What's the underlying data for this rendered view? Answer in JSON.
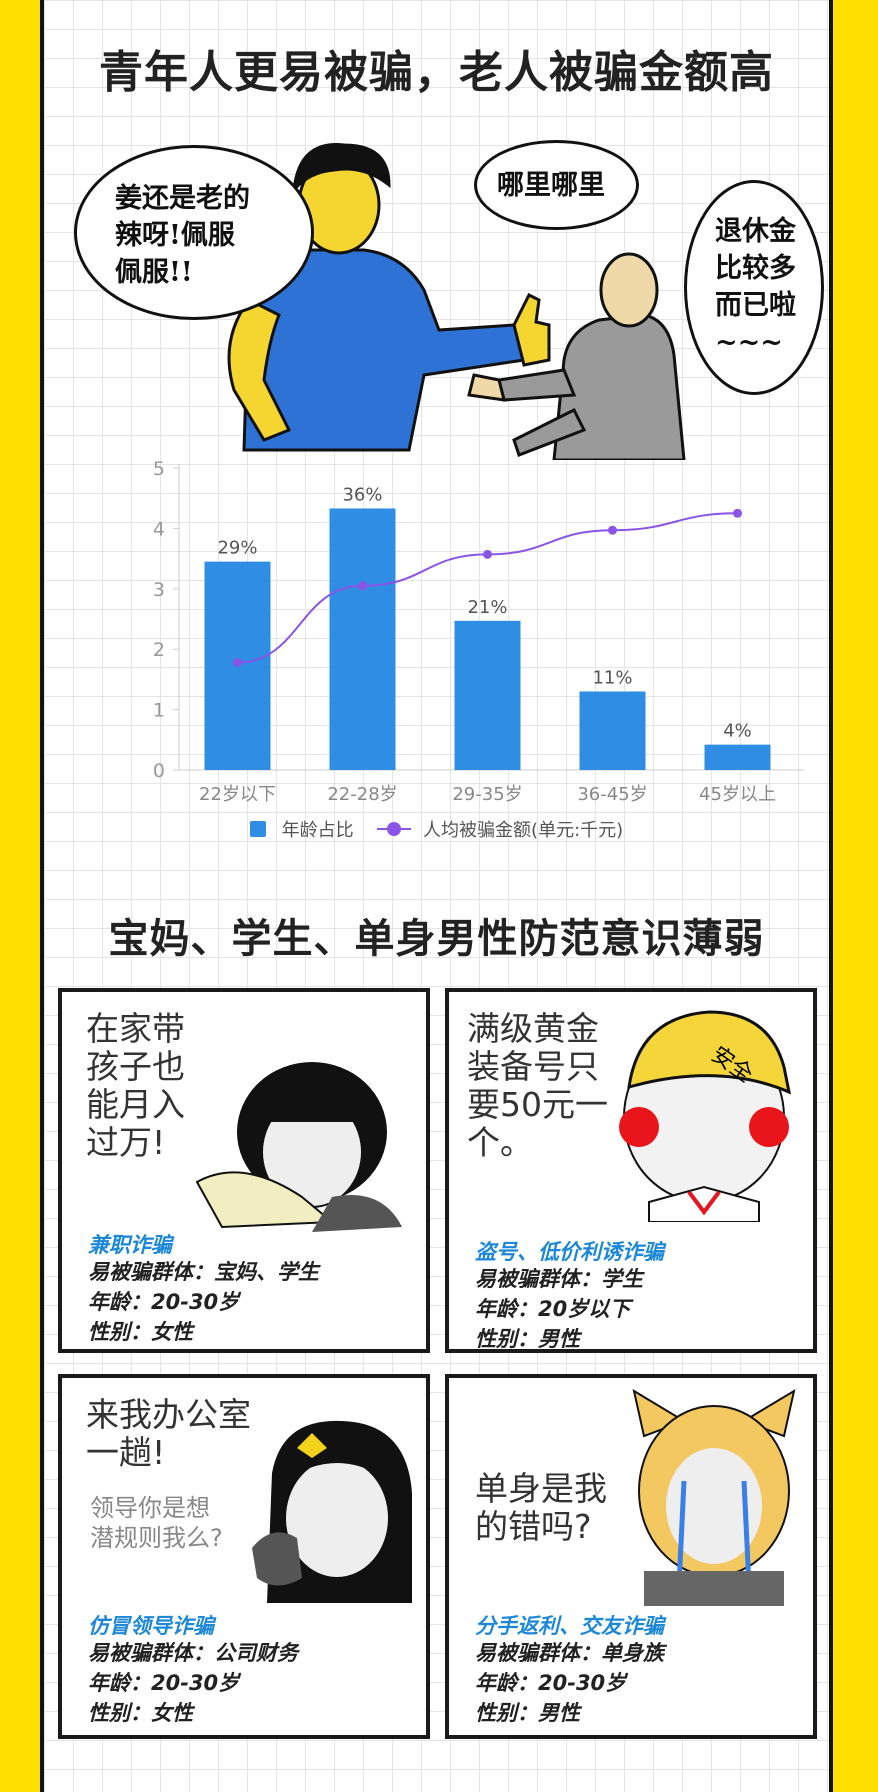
{
  "section1": {
    "title": "青年人更易被骗，老人被骗金额高"
  },
  "comic": {
    "young_speech": "姜还是老的\n辣呀!佩服\n佩服!!",
    "old_speech_1": "哪里哪里",
    "old_speech_2": "退休金\n比较多\n而已啦\n~~~"
  },
  "chart_data": {
    "type": "bar",
    "categories": [
      "22岁以下",
      "22-28岁",
      "29-35岁",
      "36-45岁",
      "45岁以上"
    ],
    "series": [
      {
        "name": "年龄占比",
        "type": "bar",
        "values": [
          3.45,
          4.33,
          2.47,
          1.3,
          0.42
        ],
        "labels": [
          "29%",
          "36%",
          "21%",
          "11%",
          "4%"
        ],
        "color": "#2f8de4"
      },
      {
        "name": "人均被骗金额(单元:千元)",
        "type": "line",
        "values": [
          1.78,
          3.05,
          3.57,
          3.97,
          4.25
        ],
        "color": "#8a55e6"
      }
    ],
    "ylim": [
      0,
      5
    ],
    "yticks": [
      0,
      1,
      2,
      3,
      4,
      5
    ],
    "grid": false,
    "legend": "bottom"
  },
  "section2": {
    "title": "宝妈、学生、单身男性防范意识薄弱"
  },
  "cards": [
    {
      "quote": "在家带\n孩子也\n能月入\n过万!",
      "scam": "兼职诈骗",
      "group": "易被骗群体：宝妈、学生",
      "age": "年龄：20-30岁",
      "gender": "性别：女性"
    },
    {
      "quote": "满级黄金\n装备号只\n要50元一\n个。",
      "hat": "安全",
      "scam": "盗号、低价利诱诈骗",
      "group": "易被骗群体：学生",
      "age": "年龄：20岁以下",
      "gender": "性别：男性"
    },
    {
      "quote": "来我办公室\n一趟!",
      "subquote": "领导你是想\n潜规则我么?",
      "scam": "仿冒领导诈骗",
      "group": "易被骗群体：公司财务",
      "age": "年龄：20-30岁",
      "gender": "性别：女性"
    },
    {
      "quote": "单身是我\n的错吗?",
      "scam": "分手返利、交友诈骗",
      "group": "易被骗群体：单身族",
      "age": "年龄：20-30岁",
      "gender": "性别：男性"
    }
  ]
}
